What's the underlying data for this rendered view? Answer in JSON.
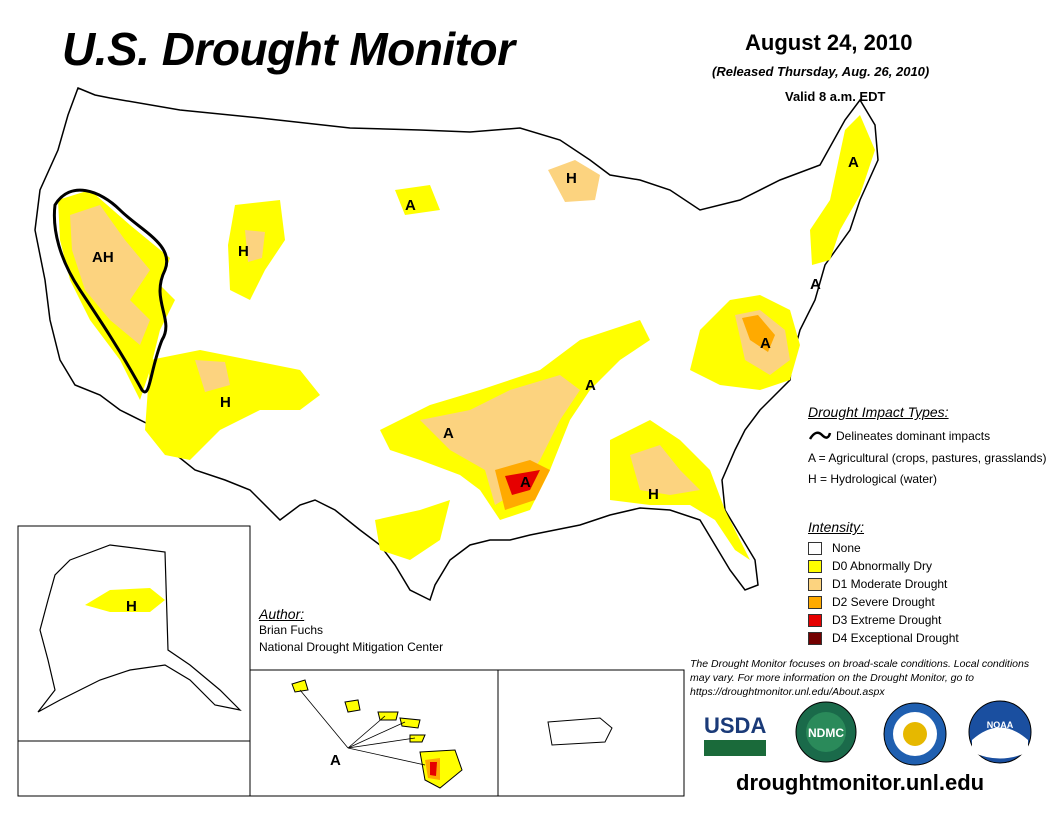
{
  "header": {
    "title": "U.S. Drought Monitor",
    "date": "August 24, 2010",
    "released": "(Released Thursday, Aug. 26, 2010)",
    "valid": "Valid 8 a.m. EDT"
  },
  "map_labels": [
    "AH",
    "H",
    "A",
    "H",
    "A",
    "A",
    "H",
    "A",
    "A",
    "A",
    "A",
    "H",
    "A"
  ],
  "impacts": {
    "heading": "Drought Impact Types:",
    "items": [
      {
        "symbol": "line-icon",
        "text": "Delineates dominant impacts"
      },
      {
        "symbol": "A",
        "text": "A = Agricultural (crops, pastures, grasslands)"
      },
      {
        "symbol": "H",
        "text": "H = Hydrological (water)"
      }
    ]
  },
  "intensity": {
    "heading": "Intensity:",
    "items": [
      {
        "label": "None",
        "color": "#ffffff"
      },
      {
        "label": "D0 Abnormally Dry",
        "color": "#ffff00"
      },
      {
        "label": "D1 Moderate Drought",
        "color": "#fcd37f"
      },
      {
        "label": "D2 Severe Drought",
        "color": "#ffaa00"
      },
      {
        "label": "D3 Extreme Drought",
        "color": "#e60000"
      },
      {
        "label": "D4 Exceptional Drought",
        "color": "#730000"
      }
    ]
  },
  "author": {
    "heading": "Author:",
    "name": "Brian Fuchs",
    "org": "National Drought Mitigation Center"
  },
  "note": "The Drought Monitor focuses on broad-scale conditions. Local conditions may vary. For more information on the Drought Monitor, go to https://droughtmonitor.unl.edu/About.aspx",
  "logos": {
    "usda": "USDA",
    "ndmc": "NDMC",
    "noaa": "NOAA"
  },
  "url": "droughtmonitor.unl.edu"
}
